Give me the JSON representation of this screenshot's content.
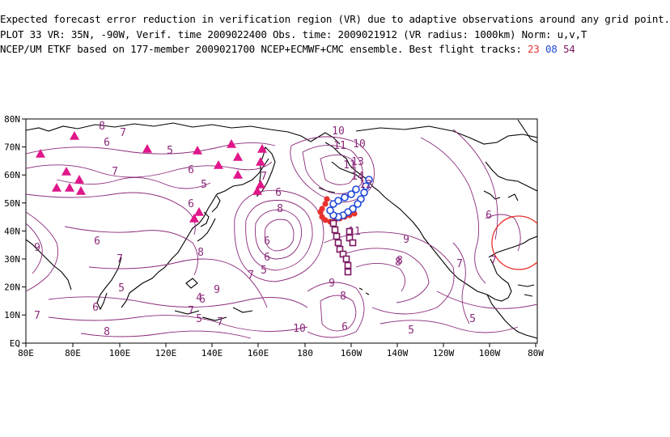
{
  "header": {
    "line1": "Expected forecast error reduction in verification region (VR) due to adaptive observations around any grid point.",
    "line2": "PLOT 33 VR: 35N, -90W, Verif. time 2009022400 Obs. time: 2009021912 (VR radius: 1000km) Norm: u,v,T",
    "line3_prefix": "NCEP/UM ETKF based on 177-member 2009021700 NCEP+ECMWF+CMC ensemble. Best flight tracks:",
    "tracks": [
      {
        "label": "23",
        "color": "#e8322e"
      },
      {
        "label": "08",
        "color": "#1f49d6"
      },
      {
        "label": "54",
        "color": "#7a1860"
      }
    ]
  },
  "axes": {
    "lon_labels": [
      "80E",
      "80E",
      "100E",
      "120E",
      "140E",
      "160E",
      "180",
      "160W",
      "140W",
      "120W",
      "100W",
      "80W"
    ],
    "lat_labels": [
      "80N",
      "70N",
      "60N",
      "50N",
      "40N",
      "30N",
      "20N",
      "10N",
      "EQ"
    ]
  },
  "verification_region": {
    "lat": 35,
    "lon": -90,
    "radius_km": 1000,
    "color": "#e8322e"
  },
  "contour_labels": [
    "8",
    "7",
    "6",
    "5",
    "6",
    "7",
    "5",
    "6",
    "9",
    "6",
    "7",
    "8",
    "5",
    "6",
    "7",
    "8",
    "10",
    "11",
    "13",
    "14",
    "12",
    "11",
    "7",
    "6",
    "8",
    "9",
    "10",
    "5",
    "5",
    "7",
    "8",
    "6",
    "9",
    "7",
    "4",
    "5",
    "7",
    "6",
    "8",
    "6",
    "6",
    "5",
    "7",
    "7",
    "6",
    "11",
    "10",
    "9",
    "8"
  ],
  "markers": {
    "triangle_color": "#e0168a",
    "track_red_color": "#e8322e",
    "track_blue_color": "#1f49d6",
    "track_purple_color": "#7a1860"
  }
}
